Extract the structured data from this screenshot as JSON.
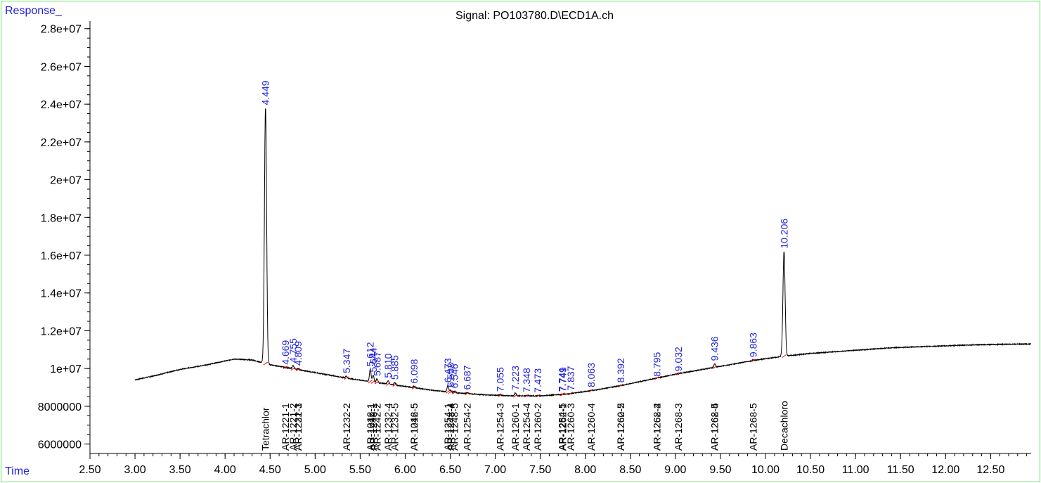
{
  "header": {
    "ylabel": "Response_",
    "title": "Signal: PO103780.D\\ECD1A.ch",
    "xlabel": "Time"
  },
  "colors": {
    "trace": "#000000",
    "peak_label": "#2222dd",
    "axis_label": "#1f1fe0",
    "baseline_mark": "#ff0000",
    "frame": "#66dd66"
  },
  "chart_data": {
    "type": "line",
    "title": "Signal: PO103780.D\\ECD1A.ch",
    "xlabel": "Time",
    "ylabel": "Response_",
    "xlim": [
      2.5,
      12.95
    ],
    "ylim": [
      5500000,
      28400000
    ],
    "x_ticks": [
      "2.50",
      "3.00",
      "3.50",
      "4.00",
      "4.50",
      "5.00",
      "5.50",
      "6.00",
      "6.50",
      "7.00",
      "7.50",
      "8.00",
      "8.50",
      "9.00",
      "9.50",
      "10.00",
      "10.50",
      "11.00",
      "11.50",
      "12.00",
      "12.50"
    ],
    "y_ticks": [
      {
        "value": 6000000,
        "label": "6000000"
      },
      {
        "value": 8000000,
        "label": "8000000"
      },
      {
        "value": 10000000,
        "label": "1e+07"
      },
      {
        "value": 12000000,
        "label": "1.2e+07"
      },
      {
        "value": 14000000,
        "label": "1.4e+07"
      },
      {
        "value": 16000000,
        "label": "1.6e+07"
      },
      {
        "value": 18000000,
        "label": "1.8e+07"
      },
      {
        "value": 20000000,
        "label": "2e+07"
      },
      {
        "value": 22000000,
        "label": "2.2e+07"
      },
      {
        "value": 24000000,
        "label": "2.4e+07"
      },
      {
        "value": 26000000,
        "label": "2.6e+07"
      },
      {
        "value": 28000000,
        "label": "2.8e+07"
      }
    ],
    "baseline": [
      [
        3.0,
        9400000
      ],
      [
        3.2,
        9600000
      ],
      [
        3.5,
        9950000
      ],
      [
        3.8,
        10200000
      ],
      [
        4.1,
        10500000
      ],
      [
        4.3,
        10450000
      ],
      [
        4.5,
        10200000
      ],
      [
        4.8,
        9950000
      ],
      [
        5.1,
        9700000
      ],
      [
        5.4,
        9450000
      ],
      [
        5.7,
        9250000
      ],
      [
        6.0,
        9050000
      ],
      [
        6.3,
        8850000
      ],
      [
        6.6,
        8700000
      ],
      [
        6.9,
        8600000
      ],
      [
        7.2,
        8550000
      ],
      [
        7.5,
        8550000
      ],
      [
        7.8,
        8650000
      ],
      [
        8.1,
        8850000
      ],
      [
        8.4,
        9100000
      ],
      [
        8.7,
        9400000
      ],
      [
        9.0,
        9700000
      ],
      [
        9.3,
        9950000
      ],
      [
        9.6,
        10200000
      ],
      [
        9.9,
        10450000
      ],
      [
        10.2,
        10650000
      ],
      [
        10.5,
        10800000
      ],
      [
        10.8,
        10900000
      ],
      [
        11.1,
        11000000
      ],
      [
        11.4,
        11100000
      ],
      [
        11.7,
        11150000
      ],
      [
        12.0,
        11200000
      ],
      [
        12.3,
        11250000
      ],
      [
        12.6,
        11280000
      ],
      [
        12.95,
        11300000
      ]
    ],
    "peaks": [
      {
        "rt": 4.449,
        "label": "4.449",
        "height": 23800000
      },
      {
        "rt": 4.669,
        "label": "4.669",
        "height": 10050000
      },
      {
        "rt": 4.755,
        "label": "4.755",
        "height": 10150000
      },
      {
        "rt": 4.809,
        "label": "4.809",
        "height": 10000000
      },
      {
        "rt": 5.347,
        "label": "5.347",
        "height": 9600000
      },
      {
        "rt": 5.612,
        "label": "5.612",
        "height": 9950000
      },
      {
        "rt": 5.644,
        "label": "5.644",
        "height": 9650000
      },
      {
        "rt": 5.687,
        "label": "5.687",
        "height": 9450000
      },
      {
        "rt": 5.81,
        "label": "5.810",
        "height": 9350000
      },
      {
        "rt": 5.885,
        "label": "5.885",
        "height": 9250000
      },
      {
        "rt": 6.098,
        "label": "6.098",
        "height": 9050000
      },
      {
        "rt": 6.473,
        "label": "6.473",
        "height": 9100000
      },
      {
        "rt": 6.503,
        "label": "6.503",
        "height": 8850000
      },
      {
        "rt": 6.546,
        "label": "6.546",
        "height": 8800000
      },
      {
        "rt": 6.687,
        "label": "6.687",
        "height": 8720000
      },
      {
        "rt": 7.055,
        "label": "7.055",
        "height": 8620000
      },
      {
        "rt": 7.223,
        "label": "7.223",
        "height": 8700000
      },
      {
        "rt": 7.348,
        "label": "7.348",
        "height": 8580000
      },
      {
        "rt": 7.473,
        "label": "7.473",
        "height": 8560000
      },
      {
        "rt": 7.741,
        "label": "7.741",
        "height": 8620000
      },
      {
        "rt": 7.749,
        "label": "7.749",
        "height": 8620000
      },
      {
        "rt": 7.837,
        "label": "7.837",
        "height": 8680000
      },
      {
        "rt": 8.063,
        "label": "8.063",
        "height": 8850000
      },
      {
        "rt": 8.392,
        "label": "8.392",
        "height": 9100000
      },
      {
        "rt": 8.795,
        "label": "8.795",
        "height": 9420000
      },
      {
        "rt": 9.032,
        "label": "9.032",
        "height": 9700000
      },
      {
        "rt": 9.436,
        "label": "9.436",
        "height": 10250000
      },
      {
        "rt": 9.863,
        "label": "9.863",
        "height": 10450000
      },
      {
        "rt": 10.206,
        "label": "10.206",
        "height": 16200000
      }
    ],
    "compounds": [
      {
        "rt": 4.449,
        "label": "Tetrachlor"
      },
      {
        "rt": 4.669,
        "label": "AR-1221-1"
      },
      {
        "rt": 4.755,
        "label": "AR-1221-2"
      },
      {
        "rt": 4.809,
        "label": "AR-1221-3"
      },
      {
        "rt": 4.809,
        "label": "AR-1232-1"
      },
      {
        "rt": 5.347,
        "label": "AR-1232-2"
      },
      {
        "rt": 5.612,
        "label": "AR-1016-1"
      },
      {
        "rt": 5.612,
        "label": "AR-1242-1"
      },
      {
        "rt": 5.644,
        "label": "AR-1248-1"
      },
      {
        "rt": 5.687,
        "label": "AR-1242-2"
      },
      {
        "rt": 5.81,
        "label": "AR-1232-4"
      },
      {
        "rt": 5.885,
        "label": "AR-1232-5"
      },
      {
        "rt": 6.098,
        "label": "AR-1016-5"
      },
      {
        "rt": 6.098,
        "label": "AR-1242-5"
      },
      {
        "rt": 6.473,
        "label": "AR-1254-1"
      },
      {
        "rt": 6.503,
        "label": "AR-1248-4"
      },
      {
        "rt": 6.546,
        "label": "AR-1248-5"
      },
      {
        "rt": 6.687,
        "label": "AR-1254-2"
      },
      {
        "rt": 7.055,
        "label": "AR-1254-3"
      },
      {
        "rt": 7.223,
        "label": "AR-1260-1"
      },
      {
        "rt": 7.348,
        "label": "AR-1254-4"
      },
      {
        "rt": 7.473,
        "label": "AR-1260-2"
      },
      {
        "rt": 7.741,
        "label": "AR-1254-5"
      },
      {
        "rt": 7.749,
        "label": "AR-1262-1"
      },
      {
        "rt": 7.837,
        "label": "AR-1260-3"
      },
      {
        "rt": 8.063,
        "label": "AR-1260-4"
      },
      {
        "rt": 8.392,
        "label": "AR-1260-5"
      },
      {
        "rt": 8.392,
        "label": "AR-1262-2"
      },
      {
        "rt": 8.795,
        "label": "AR-1268-2"
      },
      {
        "rt": 8.795,
        "label": "AR-1262-4"
      },
      {
        "rt": 9.032,
        "label": "AR-1268-3"
      },
      {
        "rt": 9.436,
        "label": "AR-1268-4"
      },
      {
        "rt": 9.436,
        "label": "AR-1262-5"
      },
      {
        "rt": 9.863,
        "label": "AR-1268-5"
      },
      {
        "rt": 10.206,
        "label": "Decachloro"
      }
    ]
  }
}
